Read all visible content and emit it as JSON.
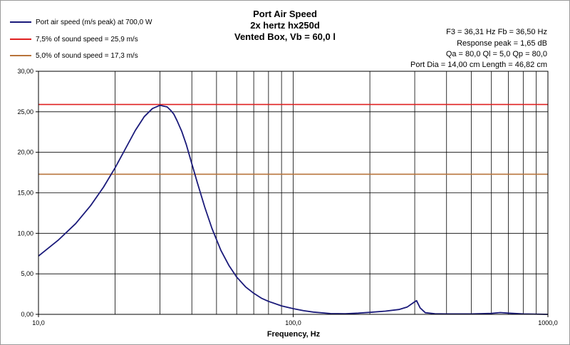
{
  "chart_data": {
    "type": "line",
    "title": [
      "Port Air  Speed",
      "2x hertz hx250d",
      "Vented Box, Vb = 60,0 l"
    ],
    "xlabel": "Frequency, Hz",
    "ylabel": "",
    "x_scale": "log",
    "xlim": [
      10,
      1000
    ],
    "ylim": [
      0,
      30
    ],
    "grid": true,
    "legend_position": "top-left",
    "x_ticks": [
      {
        "value": 10,
        "label": "10,0"
      },
      {
        "value": 100,
        "label": "100,0"
      },
      {
        "value": 1000,
        "label": "1000,0"
      }
    ],
    "y_ticks": [
      {
        "value": 0,
        "label": "0,00"
      },
      {
        "value": 5,
        "label": "5,00"
      },
      {
        "value": 10,
        "label": "10,00"
      },
      {
        "value": 15,
        "label": "15,00"
      },
      {
        "value": 20,
        "label": "20,00"
      },
      {
        "value": 25,
        "label": "25,00"
      },
      {
        "value": 30,
        "label": "30,00"
      }
    ],
    "series": [
      {
        "name": "Port air speed (m/s peak) at 700,0 W",
        "color": "#1a1a7a",
        "x": [
          10,
          12,
          14,
          16,
          18,
          20,
          22,
          24,
          26,
          28,
          30,
          32,
          33,
          34,
          35,
          36.5,
          38,
          40,
          42,
          45,
          48,
          52,
          56,
          60,
          65,
          70,
          75,
          80,
          90,
          100,
          110,
          120,
          140,
          160,
          180,
          200,
          230,
          260,
          280,
          295,
          305,
          315,
          330,
          360,
          400,
          500,
          600,
          650,
          700,
          800,
          1000
        ],
        "values": [
          7.2,
          9.2,
          11.2,
          13.4,
          15.7,
          18.1,
          20.5,
          22.7,
          24.4,
          25.4,
          25.8,
          25.6,
          25.2,
          24.7,
          23.9,
          22.6,
          21.0,
          18.6,
          16.3,
          13.2,
          10.6,
          7.9,
          6.0,
          4.6,
          3.4,
          2.6,
          2.0,
          1.6,
          1.05,
          0.7,
          0.45,
          0.28,
          0.1,
          0.08,
          0.15,
          0.25,
          0.4,
          0.6,
          0.9,
          1.4,
          1.7,
          0.8,
          0.2,
          0.08,
          0.05,
          0.05,
          0.12,
          0.22,
          0.15,
          0.05,
          0.0
        ]
      },
      {
        "name": "7,5% of sound speed = 25,9 m/s",
        "color": "#e02020",
        "x": [
          10,
          1000
        ],
        "values": [
          25.9,
          25.9
        ]
      },
      {
        "name": "5,0% of sound speed = 17,3 m/s",
        "color": "#b8733a",
        "x": [
          10,
          1000
        ],
        "values": [
          17.3,
          17.3
        ]
      }
    ],
    "annotations": [
      "F3 = 36,31  Hz   Fb = 36,50  Hz",
      "Response peak = 1,65 dB",
      "Qa = 80,0   Ql = 5,0   Qp = 80,0",
      "Port Dia = 14,00  cm   Length = 46,82  cm"
    ]
  }
}
